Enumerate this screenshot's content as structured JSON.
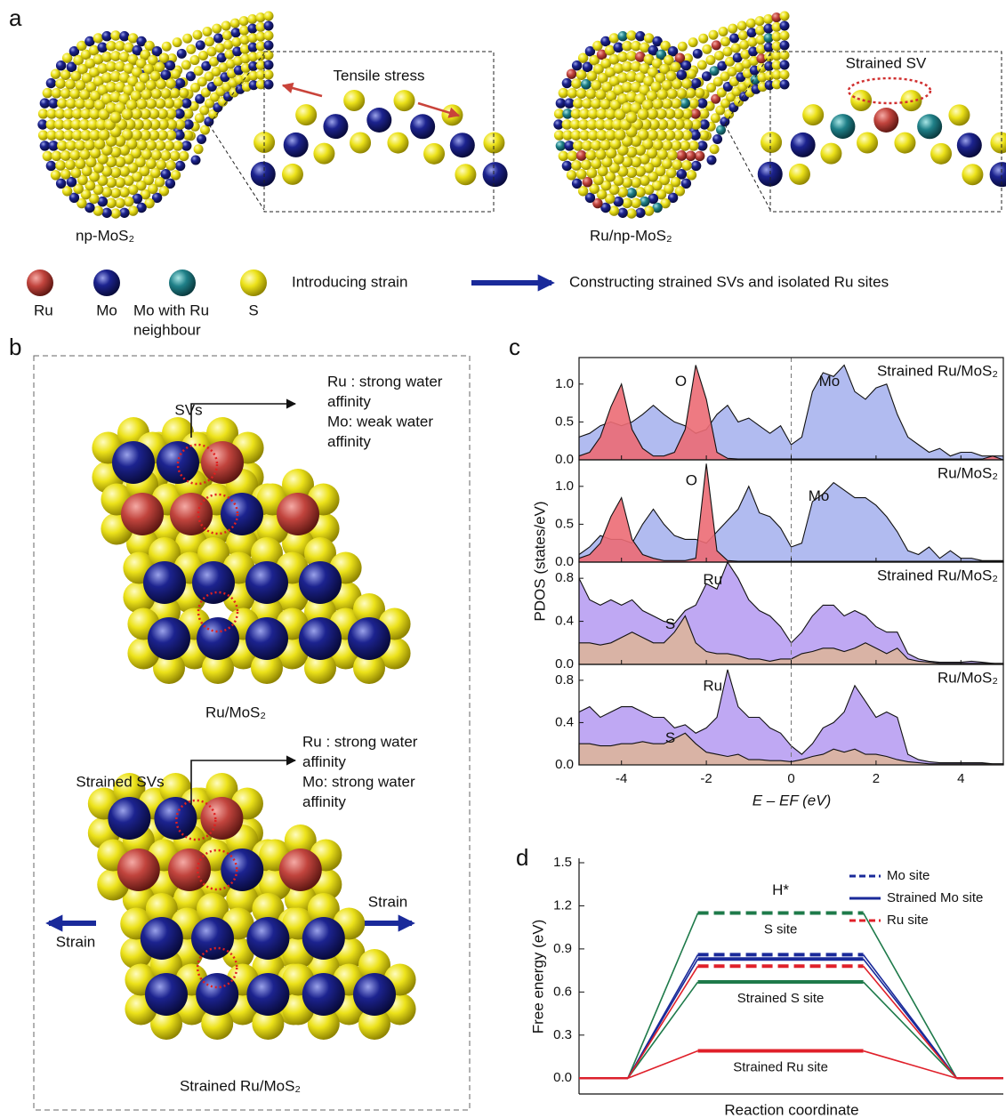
{
  "panel_labels": [
    "a",
    "b",
    "c",
    "d"
  ],
  "panel_a": {
    "inset_left": "Tensile stress",
    "inset_right": "Strained SV",
    "label_left": "np-MoS₂",
    "label_right": "Ru/np-MoS₂",
    "legend": [
      [
        "Ru"
      ],
      [
        "Mo"
      ],
      [
        "Mo with Ru",
        "neighbour"
      ],
      [
        "S"
      ]
    ],
    "process": [
      "Introducing strain",
      "Constructing strained SVs and isolated Ru sites"
    ]
  },
  "panel_b": {
    "top": {
      "site": "SVs",
      "note": [
        "Ru : strong water",
        "affinity",
        "Mo: weak water",
        "affinity"
      ],
      "caption": "Ru/MoS₂"
    },
    "bottom": {
      "site": "Strained SVs",
      "note": [
        "Ru : strong water",
        "affinity",
        "Mo: strong water",
        "affinity"
      ],
      "strain": [
        "Strain",
        "Strain"
      ],
      "caption": "Strained Ru/MoS₂"
    }
  },
  "chart_data": [
    {
      "type": "area",
      "title": "Strained Ru/MoS₂",
      "ylabel": "PDOS (states/eV)",
      "x": [
        -5,
        -4.75,
        -4.5,
        -4.25,
        -4,
        -3.75,
        -3.5,
        -3.25,
        -3,
        -2.75,
        -2.5,
        -2.25,
        -2,
        -1.75,
        -1.5,
        -1.25,
        -1,
        -0.75,
        -0.5,
        -0.25,
        0,
        0.25,
        0.5,
        0.75,
        1,
        1.25,
        1.5,
        1.75,
        2,
        2.25,
        2.5,
        2.75,
        3,
        3.25,
        3.5,
        3.75,
        4,
        4.25,
        4.5,
        4.75,
        5
      ],
      "series": [
        {
          "name": "Mo",
          "color": "#a9b4ee",
          "values": [
            0.3,
            0.35,
            0.45,
            0.5,
            0.45,
            0.5,
            0.6,
            0.72,
            0.6,
            0.5,
            0.45,
            0.35,
            0.4,
            0.6,
            0.72,
            0.5,
            0.55,
            0.45,
            0.35,
            0.45,
            0.2,
            0.3,
            0.9,
            1.15,
            1.1,
            1.25,
            0.9,
            0.8,
            0.95,
            1.0,
            0.6,
            0.3,
            0.2,
            0.1,
            0.15,
            0.05,
            0.1,
            0.1,
            0.05,
            0.05,
            0.05
          ]
        },
        {
          "name": "O",
          "color": "#ec6b74",
          "values": [
            0.05,
            0.1,
            0.3,
            0.7,
            1.0,
            0.4,
            0.15,
            0.05,
            0.05,
            0.1,
            0.4,
            1.25,
            0.8,
            0.1,
            0.02,
            0.01,
            0.01,
            0.01,
            0.01,
            0.01,
            0.01,
            0.01,
            0.01,
            0.01,
            0.01,
            0.01,
            0.01,
            0.01,
            0.01,
            0.01,
            0.01,
            0.01,
            0.01,
            0.01,
            0.01,
            0.01,
            0.01,
            0.01,
            0.01,
            0.05,
            0
          ]
        }
      ],
      "xlim": [
        -5,
        5
      ],
      "xticks": [
        -4,
        -2,
        0,
        2,
        4
      ],
      "ylim": [
        0,
        1.35
      ],
      "yticks": [
        {
          "value": 0,
          "label": "0.0"
        },
        0.5,
        {
          "value": 1,
          "label": "1.0"
        }
      ],
      "vline": 0
    },
    {
      "type": "area",
      "title": "Ru/MoS₂",
      "x": [
        -5,
        -4.75,
        -4.5,
        -4.25,
        -4,
        -3.75,
        -3.5,
        -3.25,
        -3,
        -2.75,
        -2.5,
        -2.25,
        -2,
        -1.75,
        -1.5,
        -1.25,
        -1,
        -0.75,
        -0.5,
        -0.25,
        0,
        0.25,
        0.5,
        0.75,
        1,
        1.25,
        1.5,
        1.75,
        2,
        2.25,
        2.5,
        2.75,
        3,
        3.25,
        3.5,
        3.75,
        4,
        4.25,
        4.5,
        4.75,
        5
      ],
      "series": [
        {
          "name": "Mo",
          "color": "#a9b4ee",
          "values": [
            0.1,
            0.2,
            0.35,
            0.3,
            0.3,
            0.25,
            0.5,
            0.7,
            0.5,
            0.35,
            0.3,
            0.3,
            0.25,
            0.4,
            0.55,
            0.7,
            1.0,
            0.65,
            0.6,
            0.45,
            0.2,
            0.25,
            0.8,
            0.9,
            1.05,
            0.95,
            0.85,
            0.85,
            0.75,
            0.6,
            0.4,
            0.15,
            0.1,
            0.2,
            0.05,
            0.15,
            0.05,
            0.05,
            0.02,
            0.02,
            0.02
          ]
        },
        {
          "name": "O",
          "color": "#ec6b74",
          "values": [
            0.05,
            0.1,
            0.25,
            0.6,
            0.85,
            0.3,
            0.1,
            0.05,
            0.02,
            0.02,
            0.02,
            0.05,
            1.3,
            0.15,
            0.02,
            0.01,
            0.01,
            0.01,
            0.01,
            0.01,
            0.01,
            0.01,
            0.01,
            0.01,
            0.01,
            0.01,
            0.01,
            0.01,
            0.01,
            0.01,
            0.01,
            0.01,
            0.01,
            0.01,
            0.01,
            0.01,
            0.01,
            0.01,
            0.01,
            0.01,
            0.01
          ]
        }
      ],
      "xlim": [
        -5,
        5
      ],
      "xticks": [
        -4,
        -2,
        0,
        2,
        4
      ],
      "ylim": [
        0,
        1.35
      ],
      "yticks": [
        {
          "value": 0,
          "label": "0.0"
        },
        0.5,
        {
          "value": 1,
          "label": "1.0"
        }
      ],
      "vline": 0
    },
    {
      "type": "area",
      "title": "Strained Ru/MoS₂",
      "x": [
        -5,
        -4.75,
        -4.5,
        -4.25,
        -4,
        -3.75,
        -3.5,
        -3.25,
        -3,
        -2.75,
        -2.5,
        -2.25,
        -2,
        -1.75,
        -1.5,
        -1.25,
        -1,
        -0.75,
        -0.5,
        -0.25,
        0,
        0.25,
        0.5,
        0.75,
        1,
        1.25,
        1.5,
        1.75,
        2,
        2.25,
        2.5,
        2.75,
        3,
        3.25,
        3.5,
        3.75,
        4,
        4.25,
        4.5,
        4.75,
        5
      ],
      "series": [
        {
          "name": "Ru",
          "color": "#b89ff2",
          "values": [
            0.8,
            0.6,
            0.55,
            0.6,
            0.55,
            0.6,
            0.5,
            0.45,
            0.4,
            0.38,
            0.5,
            0.55,
            0.75,
            0.7,
            0.95,
            0.8,
            0.6,
            0.5,
            0.45,
            0.35,
            0.2,
            0.3,
            0.45,
            0.55,
            0.55,
            0.45,
            0.5,
            0.45,
            0.35,
            0.3,
            0.3,
            0.1,
            0.05,
            0.03,
            0.02,
            0.02,
            0.02,
            0.03,
            0.02,
            0.01,
            0
          ]
        },
        {
          "name": "S",
          "color": "#dcb49c",
          "values": [
            0.2,
            0.2,
            0.18,
            0.2,
            0.25,
            0.3,
            0.25,
            0.2,
            0.2,
            0.3,
            0.45,
            0.2,
            0.12,
            0.1,
            0.1,
            0.08,
            0.05,
            0.05,
            0.03,
            0.05,
            0.05,
            0.1,
            0.12,
            0.15,
            0.15,
            0.12,
            0.15,
            0.2,
            0.15,
            0.1,
            0.15,
            0.05,
            0.03,
            0.02,
            0.01,
            0.01,
            0.01,
            0.01,
            0.01,
            0.01,
            0.01
          ]
        }
      ],
      "xlim": [
        -5,
        5
      ],
      "xticks": [
        -4,
        -2,
        0,
        2,
        4
      ],
      "ylim": [
        0,
        0.95
      ],
      "yticks": [
        {
          "value": 0,
          "label": "0.0"
        },
        0.4,
        0.8
      ],
      "vline": 0
    },
    {
      "type": "area",
      "title": "Ru/MoS₂",
      "xlabel": "E – EF (eV)",
      "x": [
        -5,
        -4.75,
        -4.5,
        -4.25,
        -4,
        -3.75,
        -3.5,
        -3.25,
        -3,
        -2.75,
        -2.5,
        -2.25,
        -2,
        -1.75,
        -1.5,
        -1.25,
        -1,
        -0.75,
        -0.5,
        -0.25,
        0,
        0.25,
        0.5,
        0.75,
        1,
        1.25,
        1.5,
        1.75,
        2,
        2.25,
        2.5,
        2.75,
        3,
        3.25,
        3.5,
        3.75,
        4,
        4.25,
        4.5,
        4.75,
        5
      ],
      "series": [
        {
          "name": "Ru",
          "color": "#b89ff2",
          "values": [
            0.5,
            0.55,
            0.45,
            0.5,
            0.55,
            0.55,
            0.5,
            0.45,
            0.45,
            0.35,
            0.38,
            0.3,
            0.35,
            0.45,
            0.9,
            0.55,
            0.45,
            0.45,
            0.35,
            0.3,
            0.18,
            0.1,
            0.2,
            0.35,
            0.4,
            0.5,
            0.75,
            0.6,
            0.45,
            0.5,
            0.45,
            0.1,
            0.05,
            0.03,
            0.02,
            0.02,
            0.02,
            0.02,
            0.02,
            0.01,
            0.01
          ]
        },
        {
          "name": "S",
          "color": "#dcb49c",
          "values": [
            0.2,
            0.2,
            0.18,
            0.18,
            0.2,
            0.2,
            0.22,
            0.2,
            0.2,
            0.25,
            0.3,
            0.2,
            0.12,
            0.1,
            0.08,
            0.1,
            0.05,
            0.05,
            0.04,
            0.04,
            0.03,
            0.05,
            0.08,
            0.1,
            0.15,
            0.12,
            0.15,
            0.1,
            0.1,
            0.08,
            0.05,
            0.03,
            0.02,
            0.01,
            0.01,
            0.01,
            0.01,
            0.01,
            0.01,
            0.01,
            0.01
          ]
        }
      ],
      "xlim": [
        -5,
        5
      ],
      "xticks": [
        -4,
        -2,
        0,
        2,
        4
      ],
      "ylim": [
        0,
        0.95
      ],
      "yticks": [
        {
          "value": 0,
          "label": "0.0"
        },
        0.4,
        0.8
      ],
      "vline": 0
    },
    {
      "type": "energy-levels",
      "xlabel": "Reaction coordinate",
      "ylabel": "Free energy (eV)",
      "categories": [
        null,
        "H*",
        null
      ],
      "series": [
        {
          "name": "S site",
          "color": "#1e7a4a",
          "dashed": true,
          "in_legend": false,
          "values": [
            0,
            1.15,
            0
          ]
        },
        {
          "name": "Strained S site",
          "color": "#1e7a4a",
          "dashed": false,
          "in_legend": false,
          "values": [
            0,
            0.67,
            0
          ]
        },
        {
          "name": "Mo site",
          "color": "#1a2a9a",
          "dashed": true,
          "in_legend": true,
          "values": [
            0,
            0.86,
            0
          ]
        },
        {
          "name": "Strained Mo site",
          "color": "#1a2a9a",
          "dashed": false,
          "in_legend": true,
          "values": [
            0,
            0.83,
            0
          ]
        },
        {
          "name": "Ru site",
          "color": "#e0202a",
          "dashed": true,
          "in_legend": true,
          "values": [
            0,
            0.78,
            0
          ]
        },
        {
          "name": "Strained Ru site",
          "color": "#e0202a",
          "dashed": false,
          "in_legend": false,
          "values": [
            0,
            0.19,
            0
          ]
        }
      ],
      "ylim": [
        -0.11,
        1.5
      ],
      "yticks": [
        {
          "value": 0,
          "label": "0.0"
        },
        0.3,
        0.6,
        0.9,
        1.2,
        1.5
      ]
    }
  ]
}
